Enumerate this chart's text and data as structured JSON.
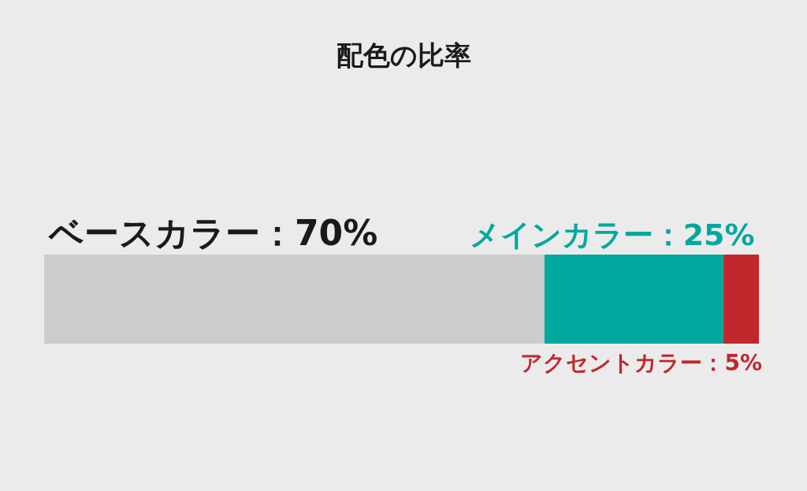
{
  "chart_data": {
    "type": "bar",
    "title": "配色の比率",
    "orientation": "horizontal",
    "stacked": true,
    "tick_labels": false,
    "grid": false,
    "categories": [
      null
    ],
    "series": [
      {
        "color": "#cccccc",
        "values": [
          70
        ],
        "value_labels": [
          "ベースカラー：70%"
        ]
      },
      {
        "color": "#00a99d",
        "values": [
          25
        ],
        "value_labels": [
          "メインカラー：25%"
        ]
      },
      {
        "color": "#c1272d",
        "values": [
          5
        ],
        "value_labels": [
          "アクセントカラー：5%"
        ]
      }
    ]
  }
}
